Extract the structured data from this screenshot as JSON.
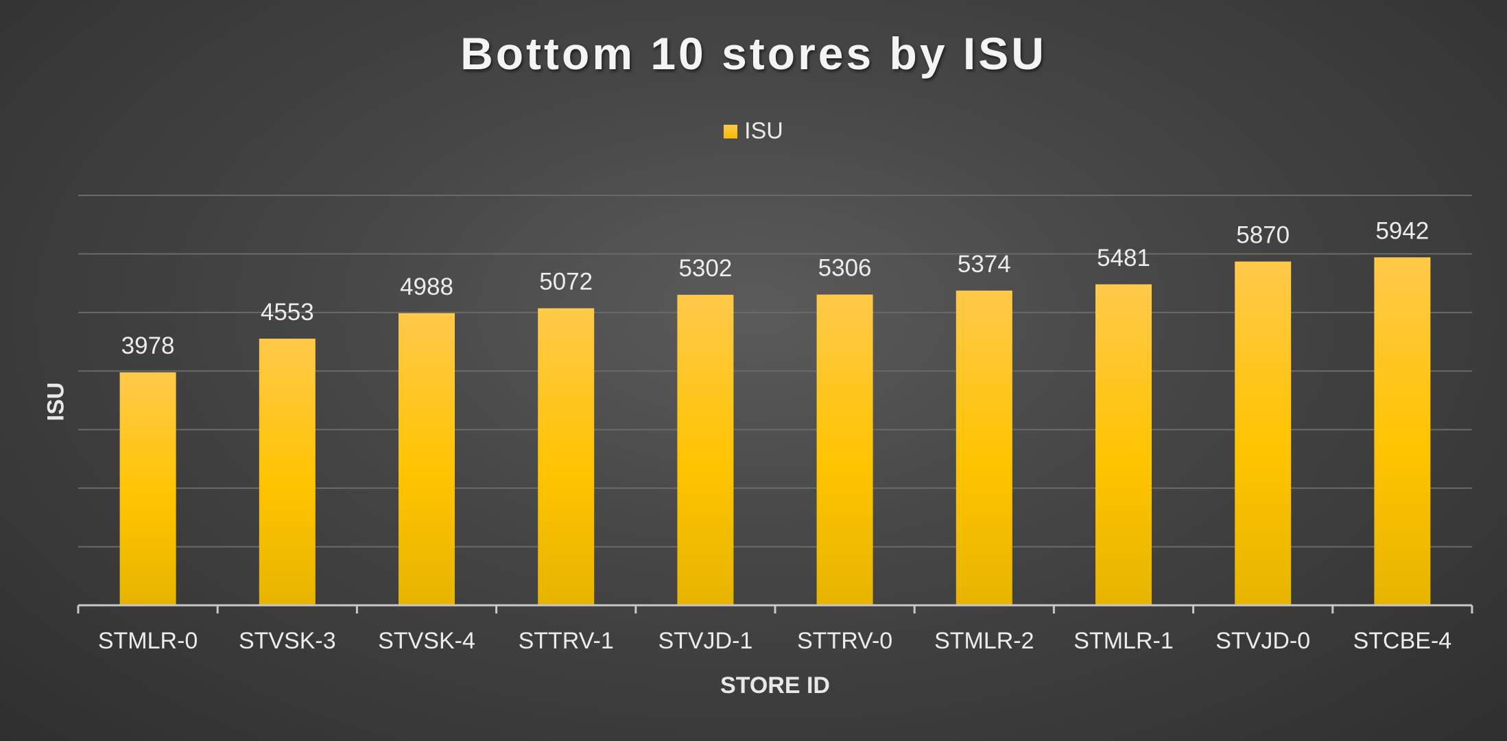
{
  "chart_data": {
    "type": "bar",
    "title": "Bottom 10 stores by ISU",
    "xlabel": "STORE ID",
    "ylabel": "ISU",
    "categories": [
      "STMLR-0",
      "STVSK-3",
      "STVSK-4",
      "STTRV-1",
      "STVJD-1",
      "STTRV-0",
      "STMLR-2",
      "STMLR-1",
      "STVJD-0",
      "STCBE-4"
    ],
    "series": [
      {
        "name": "ISU",
        "values": [
          3978,
          4553,
          4988,
          5072,
          5302,
          5306,
          5374,
          5481,
          5870,
          5942
        ]
      }
    ],
    "ylim": [
      0,
      7000
    ],
    "grid": true,
    "legend_position": "top",
    "data_labels": true,
    "colors": {
      "bar_top": "#ffc94a",
      "bar_mid": "#ffc400",
      "bar_bottom": "#e6b400",
      "gridline": "#6a6a6a",
      "axis": "#c8c8c8"
    }
  }
}
